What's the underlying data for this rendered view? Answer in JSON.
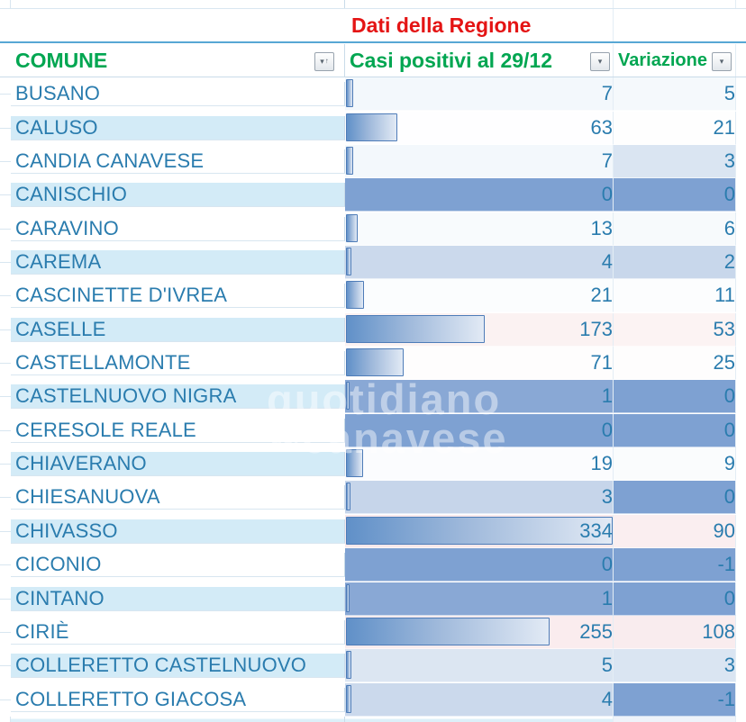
{
  "sheet": {
    "banner": "Dati della Regione",
    "headers": {
      "comune": "COMUNE",
      "casi": "Casi positivi al 29/12",
      "variazione": "Variazione"
    }
  },
  "icons": {
    "filter_dropdown": "▾",
    "sort_ascending_mark": "↑"
  },
  "colors": {
    "banner_text": "#E41414",
    "header_text": "#00A651",
    "cell_text": "#2A7CAE",
    "row_band_blue": "#D3EBF7",
    "scale_low_blue": "#7EA1D2",
    "scale_high_pink": "#F9ECEE",
    "bar_fill_start": "#6090C8",
    "bar_border": "#4E7CB8",
    "banner_separator_blue": "#57A7D4"
  },
  "bars": {
    "max": 334
  },
  "watermark": {
    "line1": "quotidiano",
    "line2_prefix": "del",
    "line2": "canavese"
  },
  "rows": [
    {
      "comune": "BUSANO",
      "casi": 7,
      "variazione": 5,
      "casi_bg": "#F3F8FC",
      "var_bg": "#F5F9FC"
    },
    {
      "comune": "CALUSO",
      "casi": 63,
      "variazione": 21,
      "casi_bg": "#FEFEFF",
      "var_bg": "#FEFEFE"
    },
    {
      "comune": "CANDIA CANAVESE",
      "casi": 7,
      "variazione": 3,
      "casi_bg": "#F3F8FC",
      "var_bg": "#DAE5F2"
    },
    {
      "comune": "CANISCHIO",
      "casi": 0,
      "variazione": 0,
      "casi_bg": "#7EA1D2",
      "var_bg": "#7EA1D2"
    },
    {
      "comune": "CARAVINO",
      "casi": 13,
      "variazione": 6,
      "casi_bg": "#F8FBFD",
      "var_bg": "#F7FAFC"
    },
    {
      "comune": "CAREMA",
      "casi": 4,
      "variazione": 2,
      "casi_bg": "#CBD9EC",
      "var_bg": "#C8D7EB"
    },
    {
      "comune": "CASCINETTE D'IVREA",
      "casi": 21,
      "variazione": 11,
      "casi_bg": "#FBFDFE",
      "var_bg": "#FCFDFE"
    },
    {
      "comune": "CASELLE",
      "casi": 173,
      "variazione": 53,
      "casi_bg": "#FBF2F2",
      "var_bg": "#FCF3F3"
    },
    {
      "comune": "CASTELLAMONTE",
      "casi": 71,
      "variazione": 25,
      "casi_bg": "#FEFDFD",
      "var_bg": "#FEFDFD"
    },
    {
      "comune": "CASTELNUOVO NIGRA",
      "casi": 1,
      "variazione": 0,
      "casi_bg": "#89A8D5",
      "var_bg": "#7EA1D2"
    },
    {
      "comune": "CERESOLE REALE",
      "casi": 0,
      "variazione": 0,
      "casi_bg": "#7EA1D2",
      "var_bg": "#7EA1D2"
    },
    {
      "comune": "CHIAVERANO",
      "casi": 19,
      "variazione": 9,
      "casi_bg": "#FBFCFE",
      "var_bg": "#FAFCFD"
    },
    {
      "comune": "CHIESANUOVA",
      "casi": 3,
      "variazione": 0,
      "casi_bg": "#C6D5EA",
      "var_bg": "#7EA1D2"
    },
    {
      "comune": "CHIVASSO",
      "casi": 334,
      "variazione": 90,
      "casi_bg": "#F9E9EB",
      "var_bg": "#FAEEF0"
    },
    {
      "comune": "CICONIO",
      "casi": 0,
      "variazione": -1,
      "casi_bg": "#7EA1D2",
      "var_bg": "#7EA1D2"
    },
    {
      "comune": "CINTANO",
      "casi": 1,
      "variazione": 0,
      "casi_bg": "#89A8D5",
      "var_bg": "#7EA1D2"
    },
    {
      "comune": "CIRIÈ",
      "casi": 255,
      "variazione": 108,
      "casi_bg": "#FAECEE",
      "var_bg": "#F9ECEE"
    },
    {
      "comune": "COLLERETTO CASTELNUOVO",
      "casi": 5,
      "variazione": 3,
      "casi_bg": "#DCE6F2",
      "var_bg": "#DAE5F2"
    },
    {
      "comune": "COLLERETTO GIACOSA",
      "casi": 4,
      "variazione": -1,
      "casi_bg": "#CBD9EC",
      "var_bg": "#7EA1D2"
    }
  ]
}
